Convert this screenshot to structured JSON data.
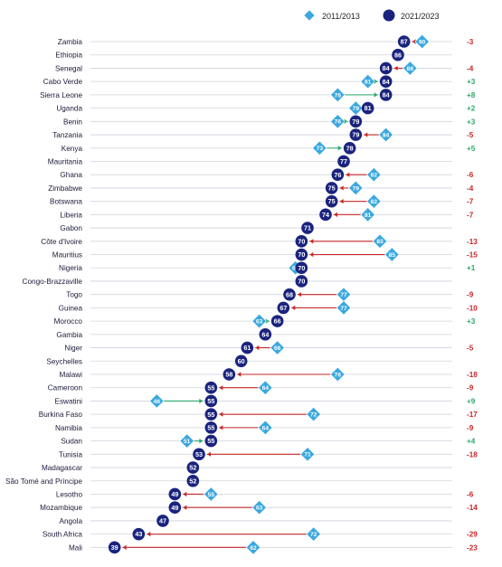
{
  "colors": {
    "old_marker": "#3aa8e0",
    "new_marker": "#1a237e",
    "decline": "#c62828",
    "increase": "#2ea86b",
    "gridline": "#cfd3dc"
  },
  "legend": {
    "old_label": "2011/2013",
    "new_label": "2021/2023"
  },
  "chart_data": {
    "type": "dumbbell",
    "legend_position": "top-right",
    "xlim": [
      35,
      95
    ],
    "series": [
      {
        "name": "2011/2013",
        "marker": "diamond"
      },
      {
        "name": "2021/2023",
        "marker": "circle"
      }
    ],
    "rows": [
      {
        "country": "Zambia",
        "old": 90,
        "new": 87,
        "change": "-3"
      },
      {
        "country": "Ethiopia",
        "old": null,
        "new": 86,
        "change": ""
      },
      {
        "country": "Senegal",
        "old": 88,
        "new": 84,
        "change": "-4"
      },
      {
        "country": "Cabo Verde",
        "old": 81,
        "new": 84,
        "change": "+3"
      },
      {
        "country": "Sierra Leone",
        "old": 76,
        "new": 84,
        "change": "+8"
      },
      {
        "country": "Uganda",
        "old": 79,
        "new": 81,
        "change": "+2"
      },
      {
        "country": "Benin",
        "old": 76,
        "new": 79,
        "change": "+3"
      },
      {
        "country": "Tanzania",
        "old": 84,
        "new": 79,
        "change": "-5"
      },
      {
        "country": "Kenya",
        "old": 73,
        "new": 78,
        "change": "+5"
      },
      {
        "country": "Mauritania",
        "old": null,
        "new": 77,
        "change": ""
      },
      {
        "country": "Ghana",
        "old": 82,
        "new": 76,
        "change": "-6"
      },
      {
        "country": "Zimbabwe",
        "old": 79,
        "new": 75,
        "change": "-4"
      },
      {
        "country": "Botswana",
        "old": 82,
        "new": 75,
        "change": "-7"
      },
      {
        "country": "Liberia",
        "old": 81,
        "new": 74,
        "change": "-7"
      },
      {
        "country": "Gabon",
        "old": null,
        "new": 71,
        "change": ""
      },
      {
        "country": "Côte d'Ivoire",
        "old": 83,
        "new": 70,
        "change": "-13"
      },
      {
        "country": "Mauritius",
        "old": 85,
        "new": 70,
        "change": "-15"
      },
      {
        "country": "Nigeria",
        "old": 69,
        "new": 70,
        "change": "+1"
      },
      {
        "country": "Congo-Brazzaville",
        "old": null,
        "new": 70,
        "change": ""
      },
      {
        "country": "Togo",
        "old": 77,
        "new": 68,
        "change": "-9"
      },
      {
        "country": "Guinea",
        "old": 77,
        "new": 67,
        "change": "-10"
      },
      {
        "country": "Morocco",
        "old": 63,
        "new": 66,
        "change": "+3"
      },
      {
        "country": "Gambia",
        "old": null,
        "new": 64,
        "change": ""
      },
      {
        "country": "Niger",
        "old": 66,
        "new": 61,
        "change": "-5"
      },
      {
        "country": "Seychelles",
        "old": null,
        "new": 60,
        "change": ""
      },
      {
        "country": "Malawi",
        "old": 76,
        "new": 58,
        "change": "-18"
      },
      {
        "country": "Cameroon",
        "old": 64,
        "new": 55,
        "change": "-9"
      },
      {
        "country": "Eswatini",
        "old": 46,
        "new": 55,
        "change": "+9"
      },
      {
        "country": "Burkina Faso",
        "old": 72,
        "new": 55,
        "change": "-17"
      },
      {
        "country": "Namibia",
        "old": 64,
        "new": 55,
        "change": "-9"
      },
      {
        "country": "Sudan",
        "old": 51,
        "new": 55,
        "change": "+4"
      },
      {
        "country": "Tunisia",
        "old": 71,
        "new": 53,
        "change": "-18"
      },
      {
        "country": "Madagascar",
        "old": null,
        "new": 52,
        "change": ""
      },
      {
        "country": "São Tomé and Príncipe",
        "old": null,
        "new": 52,
        "change": ""
      },
      {
        "country": "Lesotho",
        "old": 55,
        "new": 49,
        "change": "-6"
      },
      {
        "country": "Mozambique",
        "old": 63,
        "new": 49,
        "change": "-14"
      },
      {
        "country": "Angola",
        "old": null,
        "new": 47,
        "change": ""
      },
      {
        "country": "South Africa",
        "old": 72,
        "new": 43,
        "change": "-29"
      },
      {
        "country": "Mali",
        "old": 62,
        "new": 39,
        "change": "-23"
      }
    ]
  }
}
